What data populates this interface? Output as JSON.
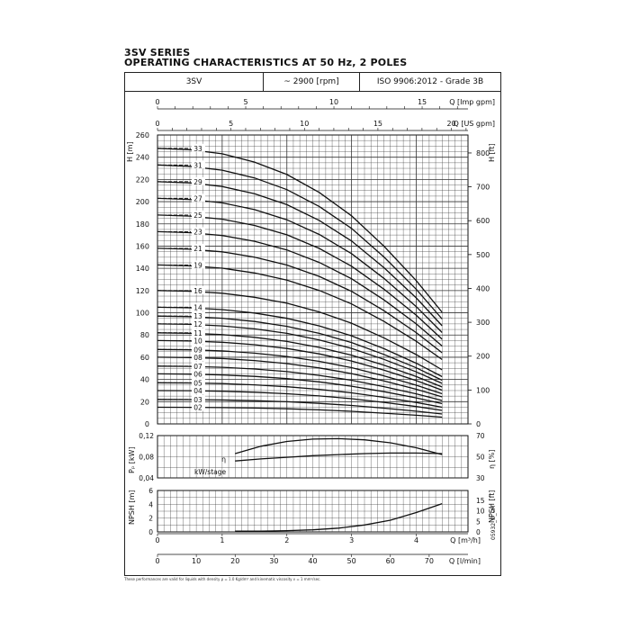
{
  "header": {
    "line1": "3SV SERIES",
    "line2": "OPERATING CHARACTERISTICS AT 50 Hz, 2 POLES",
    "cells": [
      "3SV",
      "~ 2900 [rpm]",
      "ISO 9906:2012 - Grade 3B"
    ]
  },
  "footnote": "These performances are valid for liquids with density ρ = 1.0 Kg/dm³ and kinematic viscosity ν = 1 mm²/sec.",
  "code": "05932_D_CH",
  "colors": {
    "line": "#111111",
    "grid": "#333333",
    "background": "#ffffff"
  },
  "chart_data": [
    {
      "type": "line",
      "title": "",
      "xlabel": "Q [m³/h]",
      "ylabel": "H [m]",
      "ylabel_right": "H [ft]",
      "top_axes": [
        {
          "label": "Q [Imp gpm]",
          "ticks": [
            0,
            5,
            10,
            15
          ],
          "range": [
            0,
            17.6
          ]
        },
        {
          "label": "Q [US gpm]",
          "ticks": [
            0,
            5,
            10,
            15,
            20
          ],
          "range": [
            0,
            21.13
          ]
        }
      ],
      "xlim": [
        0,
        4.8
      ],
      "ylim": [
        0,
        260
      ],
      "yticks": [
        0,
        20,
        40,
        60,
        80,
        100,
        120,
        140,
        160,
        180,
        200,
        220,
        240,
        260
      ],
      "yticks_right": [
        0,
        100,
        200,
        300,
        400,
        500,
        600,
        700,
        800
      ],
      "grid": true,
      "q_points": [
        0,
        0.5,
        1.0,
        1.5,
        2.0,
        2.5,
        3.0,
        3.5,
        4.0,
        4.4
      ],
      "curve_shape": [
        1.0,
        0.995,
        0.98,
        0.95,
        0.905,
        0.84,
        0.755,
        0.645,
        0.52,
        0.405
      ],
      "series": [
        {
          "name": "33",
          "h0": 248
        },
        {
          "name": "31",
          "h0": 233
        },
        {
          "name": "29",
          "h0": 218
        },
        {
          "name": "27",
          "h0": 203
        },
        {
          "name": "25",
          "h0": 188
        },
        {
          "name": "23",
          "h0": 173
        },
        {
          "name": "21",
          "h0": 158
        },
        {
          "name": "19",
          "h0": 143
        },
        {
          "name": "16",
          "h0": 120
        },
        {
          "name": "14",
          "h0": 105
        },
        {
          "name": "13",
          "h0": 97
        },
        {
          "name": "12",
          "h0": 90
        },
        {
          "name": "11",
          "h0": 82
        },
        {
          "name": "10",
          "h0": 75
        },
        {
          "name": "09",
          "h0": 67
        },
        {
          "name": "08",
          "h0": 60
        },
        {
          "name": "07",
          "h0": 52
        },
        {
          "name": "06",
          "h0": 45
        },
        {
          "name": "05",
          "h0": 37
        },
        {
          "name": "04",
          "h0": 30
        },
        {
          "name": "03",
          "h0": 22
        },
        {
          "name": "02",
          "h0": 15
        }
      ]
    },
    {
      "type": "line",
      "ylabel": "Pₚ [kW]",
      "ylabel_right": "η [%]",
      "ylim": [
        0.04,
        0.12
      ],
      "yticks": [
        "0,04",
        "0,08",
        "0,12"
      ],
      "ylim_right": [
        30,
        70
      ],
      "yticks_right": [
        30,
        50,
        70
      ],
      "series": [
        {
          "name": "η",
          "x": [
            1.2,
            1.6,
            2.0,
            2.4,
            2.8,
            3.2,
            3.6,
            4.0,
            4.4
          ],
          "y": [
            53,
            60,
            64.5,
            66.7,
            67.1,
            66,
            63.2,
            58.5,
            52
          ]
        },
        {
          "name": "kW/stage",
          "x": [
            1.2,
            1.6,
            2.0,
            2.4,
            2.8,
            3.2,
            3.6,
            4.0,
            4.4
          ],
          "y": [
            0.072,
            0.076,
            0.079,
            0.082,
            0.084,
            0.086,
            0.087,
            0.087,
            0.086
          ]
        }
      ]
    },
    {
      "type": "line",
      "ylabel": "NPSH [m]",
      "ylabel_right": "NPSH [ft]",
      "ylim": [
        0,
        6
      ],
      "yticks": [
        0,
        2,
        4,
        6
      ],
      "yticks_right": [
        0,
        5,
        10,
        15
      ],
      "series": [
        {
          "name": "NPSH",
          "x": [
            1.2,
            1.6,
            2.0,
            2.4,
            2.8,
            3.2,
            3.6,
            4.0,
            4.4
          ],
          "y": [
            0.1,
            0.12,
            0.18,
            0.3,
            0.55,
            1.0,
            1.7,
            2.8,
            4.1
          ]
        }
      ]
    },
    {
      "type": "line",
      "xaxes": [
        {
          "label": "Q [m³/h]",
          "ticks": [
            0,
            1,
            2,
            3,
            4
          ],
          "range": [
            0,
            4.8
          ]
        },
        {
          "label": "Q [l/min]",
          "ticks": [
            0,
            10,
            20,
            30,
            40,
            50,
            60,
            70
          ],
          "range": [
            0,
            80
          ]
        }
      ]
    }
  ]
}
